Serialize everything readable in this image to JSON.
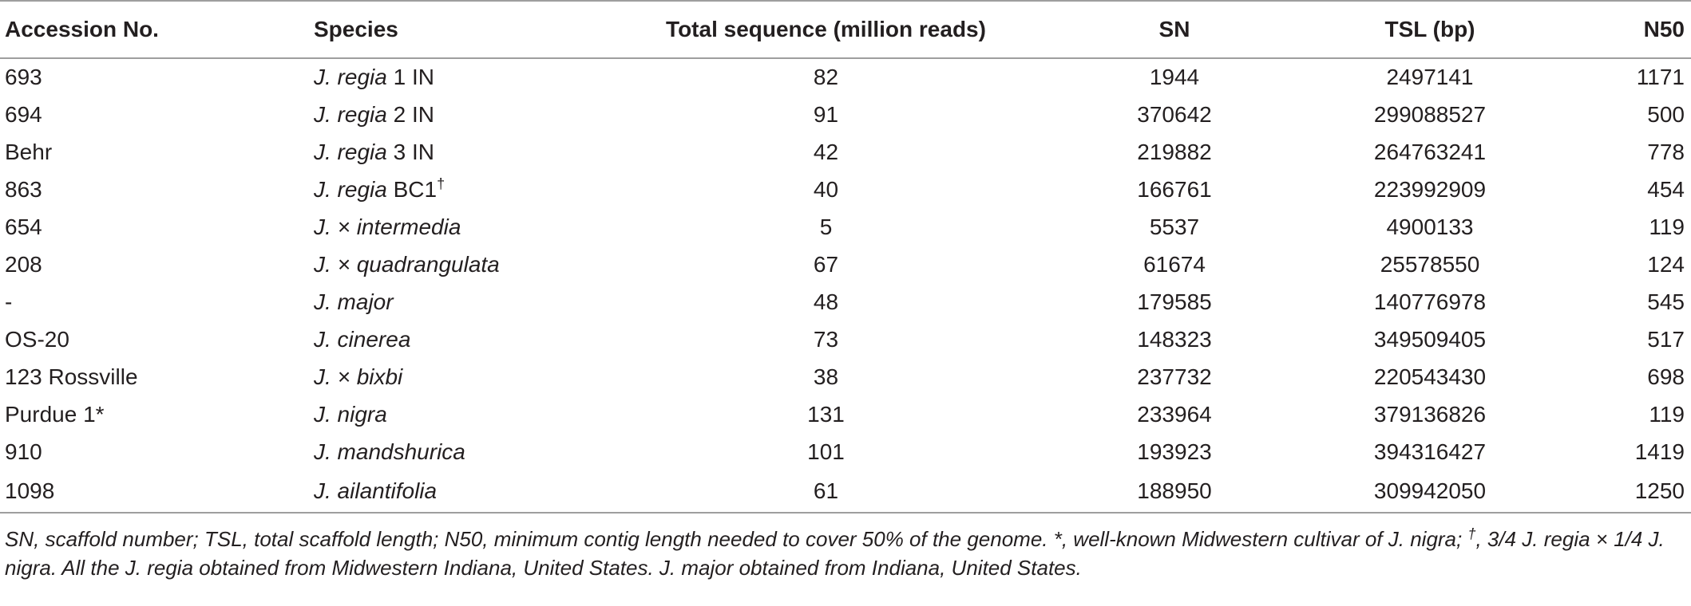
{
  "table": {
    "headers": {
      "accession": "Accession No.",
      "species": "Species",
      "total": "Total sequence (million reads)",
      "sn": "SN",
      "tsl": "TSL (bp)",
      "n50": "N50"
    },
    "rows": [
      {
        "accession": "693",
        "species_italic": "J. regia",
        "species_rest": " 1 IN",
        "species_sup": "",
        "total": "82",
        "sn": "1944",
        "tsl": "2497141",
        "n50": "1171"
      },
      {
        "accession": "694",
        "species_italic": "J. regia",
        "species_rest": " 2 IN",
        "species_sup": "",
        "total": "91",
        "sn": "370642",
        "tsl": "299088527",
        "n50": "500"
      },
      {
        "accession": "Behr",
        "species_italic": "J. regia",
        "species_rest": " 3 IN",
        "species_sup": "",
        "total": "42",
        "sn": "219882",
        "tsl": "264763241",
        "n50": "778"
      },
      {
        "accession": "863",
        "species_italic": "J. regia",
        "species_rest": " BC1",
        "species_sup": "†",
        "total": "40",
        "sn": "166761",
        "tsl": "223992909",
        "n50": "454"
      },
      {
        "accession": "654",
        "species_italic": "J. × intermedia",
        "species_rest": "",
        "species_sup": "",
        "total": "5",
        "sn": "5537",
        "tsl": "4900133",
        "n50": "119"
      },
      {
        "accession": "208",
        "species_italic": "J. × quadrangulata",
        "species_rest": "",
        "species_sup": "",
        "total": "67",
        "sn": "61674",
        "tsl": "25578550",
        "n50": "124"
      },
      {
        "accession": "-",
        "species_italic": "J. major",
        "species_rest": "",
        "species_sup": "",
        "total": "48",
        "sn": "179585",
        "tsl": "140776978",
        "n50": "545"
      },
      {
        "accession": "OS-20",
        "species_italic": "J. cinerea",
        "species_rest": "",
        "species_sup": "",
        "total": "73",
        "sn": "148323",
        "tsl": "349509405",
        "n50": "517"
      },
      {
        "accession": "123 Rossville",
        "species_italic": "J. × bixbi",
        "species_rest": "",
        "species_sup": "",
        "total": "38",
        "sn": "237732",
        "tsl": "220543430",
        "n50": "698"
      },
      {
        "accession": "Purdue 1*",
        "species_italic": "J. nigra",
        "species_rest": "",
        "species_sup": "",
        "total": "131",
        "sn": "233964",
        "tsl": "379136826",
        "n50": "119"
      },
      {
        "accession": "910",
        "species_italic": "J. mandshurica",
        "species_rest": "",
        "species_sup": "",
        "total": "101",
        "sn": "193923",
        "tsl": "394316427",
        "n50": "1419"
      },
      {
        "accession": "1098",
        "species_italic": "J. ailantifolia",
        "species_rest": "",
        "species_sup": "",
        "total": "61",
        "sn": "188950",
        "tsl": "309942050",
        "n50": "1250"
      }
    ]
  },
  "footnote": {
    "part1": "SN, scaffold number; TSL, total scaffold length; N50, minimum contig length needed to cover 50% of the genome. *, well-known Midwestern cultivar of J. nigra; ",
    "dagger": "†",
    "part2": ", 3/4 J. regia × 1/4 J. nigra. All the J. regia obtained from Midwestern Indiana, United States. J. major obtained from Indiana, United States."
  }
}
